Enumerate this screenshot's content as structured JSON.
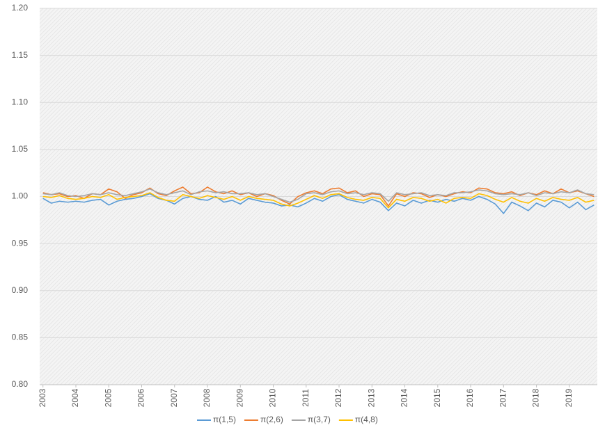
{
  "chart_data": {
    "type": "line",
    "x": [
      2003,
      2003.25,
      2003.5,
      2003.75,
      2004,
      2004.25,
      2004.5,
      2004.75,
      2005,
      2005.25,
      2005.5,
      2005.75,
      2006,
      2006.25,
      2006.5,
      2006.75,
      2007,
      2007.25,
      2007.5,
      2007.75,
      2008,
      2008.25,
      2008.5,
      2008.75,
      2009,
      2009.25,
      2009.5,
      2009.75,
      2010,
      2010.25,
      2010.5,
      2010.75,
      2011,
      2011.25,
      2011.5,
      2011.75,
      2012,
      2012.25,
      2012.5,
      2012.75,
      2013,
      2013.25,
      2013.5,
      2013.75,
      2014,
      2014.25,
      2014.5,
      2014.75,
      2015,
      2015.25,
      2015.5,
      2015.75,
      2016,
      2016.25,
      2016.5,
      2016.75,
      2017,
      2017.25,
      2017.5,
      2017.75,
      2018,
      2018.25,
      2018.5,
      2018.75,
      2019,
      2019.25,
      2019.5,
      2019.75
    ],
    "series": [
      {
        "name": "π(1,5)",
        "color": "#5b9bd5",
        "values": [
          0.998,
          0.993,
          0.995,
          0.994,
          0.995,
          0.994,
          0.996,
          0.997,
          0.991,
          0.995,
          0.997,
          0.998,
          1.0,
          1.003,
          0.998,
          0.996,
          0.992,
          0.998,
          1.0,
          0.997,
          0.996,
          1.0,
          0.994,
          0.996,
          0.992,
          0.998,
          0.996,
          0.994,
          0.993,
          0.99,
          0.991,
          0.989,
          0.993,
          0.998,
          0.995,
          1.0,
          1.002,
          0.997,
          0.995,
          0.993,
          0.997,
          0.994,
          0.985,
          0.993,
          0.99,
          0.996,
          0.993,
          0.996,
          0.994,
          0.997,
          0.995,
          0.998,
          0.996,
          1.0,
          0.997,
          0.992,
          0.982,
          0.994,
          0.99,
          0.985,
          0.993,
          0.989,
          0.996,
          0.994,
          0.988,
          0.994,
          0.986,
          0.991
        ]
      },
      {
        "name": "π(2,6)",
        "color": "#ed7d31",
        "values": [
          1.004,
          1.002,
          1.003,
          1.0,
          1.001,
          0.998,
          1.003,
          1.002,
          1.008,
          1.005,
          0.998,
          1.002,
          1.004,
          1.009,
          1.003,
          1.001,
          1.006,
          1.01,
          1.003,
          1.004,
          1.01,
          1.005,
          1.003,
          1.006,
          1.002,
          1.004,
          1.0,
          1.003,
          1.001,
          0.996,
          0.992,
          1.0,
          1.004,
          1.006,
          1.003,
          1.008,
          1.009,
          1.004,
          1.006,
          1.0,
          1.003,
          1.002,
          0.99,
          1.003,
          1.0,
          1.004,
          1.003,
          0.999,
          1.002,
          1.0,
          1.003,
          1.005,
          1.004,
          1.009,
          1.008,
          1.004,
          1.003,
          1.005,
          1.001,
          1.004,
          1.002,
          1.006,
          1.003,
          1.008,
          1.004,
          1.006,
          1.003,
          1.0
        ]
      },
      {
        "name": "π(3,7)",
        "color": "#a5a5a5",
        "values": [
          1.003,
          1.002,
          1.004,
          1.001,
          1.0,
          1.001,
          1.003,
          1.002,
          1.004,
          1.002,
          1.001,
          1.003,
          1.005,
          1.008,
          1.004,
          1.002,
          1.004,
          1.006,
          1.002,
          1.005,
          1.006,
          1.004,
          1.005,
          1.003,
          1.003,
          1.004,
          1.002,
          1.003,
          1.0,
          0.997,
          0.994,
          0.997,
          1.003,
          1.004,
          1.002,
          1.005,
          1.006,
          1.003,
          1.004,
          1.002,
          1.004,
          1.003,
          0.995,
          1.004,
          1.002,
          1.003,
          1.004,
          1.001,
          1.002,
          1.001,
          1.004,
          1.004,
          1.005,
          1.007,
          1.006,
          1.003,
          1.002,
          1.003,
          1.002,
          1.004,
          1.001,
          1.004,
          1.003,
          1.005,
          1.004,
          1.007,
          1.003,
          1.002
        ]
      },
      {
        "name": "π(4,8)",
        "color": "#ffc000",
        "values": [
          1.0,
          0.999,
          1.001,
          0.998,
          0.997,
          0.998,
          1.0,
          0.999,
          1.002,
          0.997,
          0.999,
          1.0,
          1.001,
          1.004,
          0.999,
          0.996,
          0.995,
          1.002,
          1.0,
          0.998,
          1.001,
          0.999,
          0.997,
          1.0,
          0.996,
          1.0,
          0.998,
          0.997,
          0.996,
          0.992,
          0.99,
          0.993,
          0.997,
          1.001,
          0.998,
          1.002,
          1.003,
          0.999,
          0.997,
          0.996,
          0.999,
          0.998,
          0.988,
          0.997,
          0.995,
          0.999,
          0.998,
          0.995,
          0.997,
          0.993,
          0.998,
          0.999,
          0.998,
          1.003,
          1.001,
          0.997,
          0.994,
          0.999,
          0.995,
          0.993,
          0.998,
          0.995,
          0.999,
          0.997,
          0.996,
          0.999,
          0.994,
          0.996
        ]
      }
    ],
    "xlim": [
      2002.9,
      2019.85
    ],
    "xticks": [
      2003,
      2004,
      2005,
      2006,
      2007,
      2008,
      2009,
      2010,
      2011,
      2012,
      2013,
      2014,
      2015,
      2016,
      2017,
      2018,
      2019
    ],
    "ylim": [
      0.8,
      1.2
    ],
    "yticks": [
      {
        "value": 0.8,
        "label": "0.80"
      },
      0.85,
      {
        "value": 0.9,
        "label": "0.90"
      },
      0.95,
      {
        "value": 1.0,
        "label": "1.00"
      },
      1.05,
      {
        "value": 1.1,
        "label": "1.10"
      },
      1.15,
      {
        "value": 1.2,
        "label": "1.20"
      }
    ],
    "grid": true,
    "legend": "bottom"
  }
}
